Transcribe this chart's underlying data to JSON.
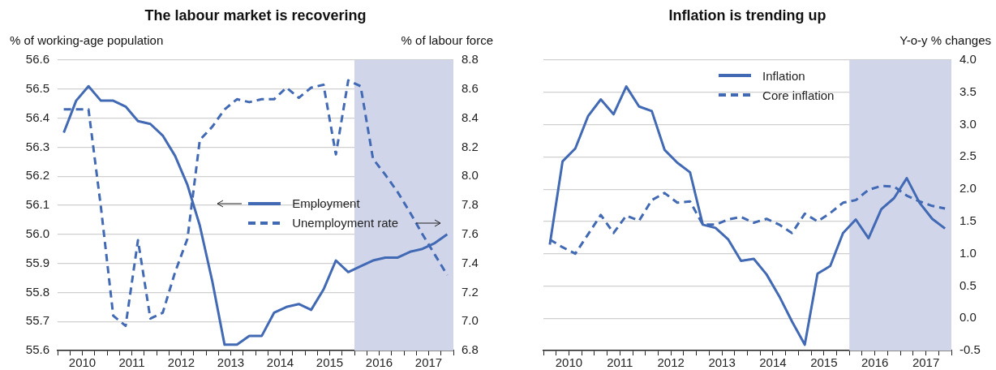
{
  "chart_data": [
    {
      "type": "line",
      "title": "The labour market is recovering",
      "ylabel": "% of working-age population",
      "y2label": "% of labour force",
      "x": [
        2010.125,
        2010.375,
        2010.625,
        2010.875,
        2011.125,
        2011.375,
        2011.625,
        2011.875,
        2012.125,
        2012.375,
        2012.625,
        2012.875,
        2013.125,
        2013.375,
        2013.625,
        2013.875,
        2014.125,
        2014.375,
        2014.625,
        2014.875,
        2015.125,
        2015.375,
        2015.625,
        2015.875,
        2016.125,
        2016.375,
        2016.625,
        2016.875,
        2017.125,
        2017.375,
        2017.625,
        2017.875
      ],
      "series": [
        {
          "name": "Employment",
          "color": "#4169b4",
          "line_style": "solid",
          "axis": "y",
          "values": [
            56.35,
            56.46,
            56.51,
            56.46,
            56.46,
            56.44,
            56.39,
            56.38,
            56.34,
            56.27,
            56.17,
            56.03,
            55.84,
            55.62,
            55.62,
            55.65,
            55.65,
            55.73,
            55.75,
            55.76,
            55.74,
            55.81,
            55.91,
            55.87,
            55.89,
            55.91,
            55.92,
            55.92,
            55.94,
            55.95,
            55.97,
            56.0
          ]
        },
        {
          "name": "Unemployment rate",
          "color": "#4169b4",
          "line_style": "dashed",
          "axis": "y2",
          "values": [
            8.46,
            8.46,
            8.46,
            7.79,
            7.04,
            6.97,
            7.56,
            7.02,
            7.06,
            7.34,
            7.57,
            8.25,
            8.34,
            8.46,
            8.53,
            8.51,
            8.53,
            8.53,
            8.61,
            8.54,
            8.61,
            8.63,
            8.15,
            8.66,
            8.62,
            8.12,
            8.01,
            7.89,
            7.75,
            7.6,
            7.46,
            7.32
          ]
        }
      ],
      "xlim": [
        2010,
        2018
      ],
      "xticks": [
        {
          "value": 2010,
          "label": null
        },
        {
          "value": 2010.25,
          "label": null
        },
        {
          "value": 2010.5,
          "label": "2010"
        },
        {
          "value": 2010.75,
          "label": null
        },
        {
          "value": 2011,
          "label": null
        },
        {
          "value": 2011.25,
          "label": null
        },
        {
          "value": 2011.5,
          "label": "2011"
        },
        {
          "value": 2011.75,
          "label": null
        },
        {
          "value": 2012,
          "label": null
        },
        {
          "value": 2012.25,
          "label": null
        },
        {
          "value": 2012.5,
          "label": "2012"
        },
        {
          "value": 2012.75,
          "label": null
        },
        {
          "value": 2013,
          "label": null
        },
        {
          "value": 2013.25,
          "label": null
        },
        {
          "value": 2013.5,
          "label": "2013"
        },
        {
          "value": 2013.75,
          "label": null
        },
        {
          "value": 2014,
          "label": null
        },
        {
          "value": 2014.25,
          "label": null
        },
        {
          "value": 2014.5,
          "label": "2014"
        },
        {
          "value": 2014.75,
          "label": null
        },
        {
          "value": 2015,
          "label": null
        },
        {
          "value": 2015.25,
          "label": null
        },
        {
          "value": 2015.5,
          "label": "2015"
        },
        {
          "value": 2015.75,
          "label": null
        },
        {
          "value": 2016,
          "label": null
        },
        {
          "value": 2016.25,
          "label": null
        },
        {
          "value": 2016.5,
          "label": "2016"
        },
        {
          "value": 2016.75,
          "label": null
        },
        {
          "value": 2017,
          "label": null
        },
        {
          "value": 2017.25,
          "label": null
        },
        {
          "value": 2017.5,
          "label": "2017"
        },
        {
          "value": 2017.75,
          "label": null
        },
        {
          "value": 2018,
          "label": null
        }
      ],
      "ylim": [
        55.6,
        56.6
      ],
      "yticks": [
        55.6,
        55.7,
        55.8,
        55.9,
        {
          "value": 56,
          "label": "56.0"
        },
        56.1,
        56.2,
        56.3,
        56.4,
        56.5,
        56.6
      ],
      "y2lim": [
        6.8,
        8.8
      ],
      "y2ticks": [
        6.8,
        {
          "value": 7,
          "label": "7.0"
        },
        7.2,
        7.4,
        7.6,
        7.8,
        {
          "value": 8,
          "label": "8.0"
        },
        8.2,
        8.4,
        8.6,
        8.8
      ],
      "bands": [
        {
          "axis": "x",
          "from": 2016,
          "to": 2018,
          "color": "#d0d5ea"
        }
      ],
      "grid": "y",
      "legend": "right",
      "marker": "none"
    },
    {
      "type": "line",
      "title": "Inflation is trending up",
      "y2label": "Y-o-y % changes",
      "x": [
        2010.125,
        2010.375,
        2010.625,
        2010.875,
        2011.125,
        2011.375,
        2011.625,
        2011.875,
        2012.125,
        2012.375,
        2012.625,
        2012.875,
        2013.125,
        2013.375,
        2013.625,
        2013.875,
        2014.125,
        2014.375,
        2014.625,
        2014.875,
        2015.125,
        2015.375,
        2015.625,
        2015.875,
        2016.125,
        2016.375,
        2016.625,
        2016.875,
        2017.125,
        2017.375,
        2017.625,
        2017.875
      ],
      "series": [
        {
          "name": "Inflation",
          "color": "#4169b4",
          "line_style": "solid",
          "axis": "y2",
          "values": [
            1.14,
            2.43,
            2.63,
            3.13,
            3.39,
            3.16,
            3.59,
            3.28,
            3.21,
            2.61,
            2.41,
            2.26,
            1.45,
            1.4,
            1.22,
            0.89,
            0.92,
            0.68,
            0.34,
            -0.05,
            -0.41,
            0.69,
            0.81,
            1.32,
            1.53,
            1.24,
            1.69,
            1.86,
            2.17,
            1.79,
            1.54,
            1.39
          ]
        },
        {
          "name": "Core inflation",
          "color": "#4169b4",
          "line_style": "dashed",
          "axis": "y2",
          "values": [
            1.22,
            1.1,
            1.0,
            1.3,
            1.6,
            1.32,
            1.59,
            1.51,
            1.83,
            1.94,
            1.79,
            1.81,
            1.45,
            1.45,
            1.53,
            1.57,
            1.48,
            1.54,
            1.45,
            1.32,
            1.62,
            1.5,
            1.63,
            1.79,
            1.83,
            1.99,
            2.05,
            2.04,
            1.9,
            1.81,
            1.74,
            1.7
          ]
        }
      ],
      "xlim": [
        2010,
        2018
      ],
      "xticks": [
        {
          "value": 2010,
          "label": null
        },
        {
          "value": 2010.25,
          "label": null
        },
        {
          "value": 2010.5,
          "label": "2010"
        },
        {
          "value": 2010.75,
          "label": null
        },
        {
          "value": 2011,
          "label": null
        },
        {
          "value": 2011.25,
          "label": null
        },
        {
          "value": 2011.5,
          "label": "2011"
        },
        {
          "value": 2011.75,
          "label": null
        },
        {
          "value": 2012,
          "label": null
        },
        {
          "value": 2012.25,
          "label": null
        },
        {
          "value": 2012.5,
          "label": "2012"
        },
        {
          "value": 2012.75,
          "label": null
        },
        {
          "value": 2013,
          "label": null
        },
        {
          "value": 2013.25,
          "label": null
        },
        {
          "value": 2013.5,
          "label": "2013"
        },
        {
          "value": 2013.75,
          "label": null
        },
        {
          "value": 2014,
          "label": null
        },
        {
          "value": 2014.25,
          "label": null
        },
        {
          "value": 2014.5,
          "label": "2014"
        },
        {
          "value": 2014.75,
          "label": null
        },
        {
          "value": 2015,
          "label": null
        },
        {
          "value": 2015.25,
          "label": null
        },
        {
          "value": 2015.5,
          "label": "2015"
        },
        {
          "value": 2015.75,
          "label": null
        },
        {
          "value": 2016,
          "label": null
        },
        {
          "value": 2016.25,
          "label": null
        },
        {
          "value": 2016.5,
          "label": "2016"
        },
        {
          "value": 2016.75,
          "label": null
        },
        {
          "value": 2017,
          "label": null
        },
        {
          "value": 2017.25,
          "label": null
        },
        {
          "value": 2017.5,
          "label": "2017"
        },
        {
          "value": 2017.75,
          "label": null
        },
        {
          "value": 2018,
          "label": null
        }
      ],
      "y2lim": [
        -0.5,
        4.0
      ],
      "y2ticks": [
        {
          "value": -0.5,
          "label": "-0.5"
        },
        {
          "value": 0,
          "label": "0.0"
        },
        {
          "value": 0.5,
          "label": "0.5"
        },
        {
          "value": 1,
          "label": "1.0"
        },
        {
          "value": 1.5,
          "label": "1.5"
        },
        {
          "value": 2,
          "label": "2.0"
        },
        {
          "value": 2.5,
          "label": "2.5"
        },
        {
          "value": 3,
          "label": "3.0"
        },
        {
          "value": 3.5,
          "label": "3.5"
        },
        {
          "value": 4,
          "label": "4.0"
        }
      ],
      "bands": [
        {
          "axis": "x",
          "from": 2016,
          "to": 2018,
          "color": "#d0d5ea"
        }
      ],
      "grid": "y",
      "legend": "top",
      "marker": "none"
    }
  ]
}
